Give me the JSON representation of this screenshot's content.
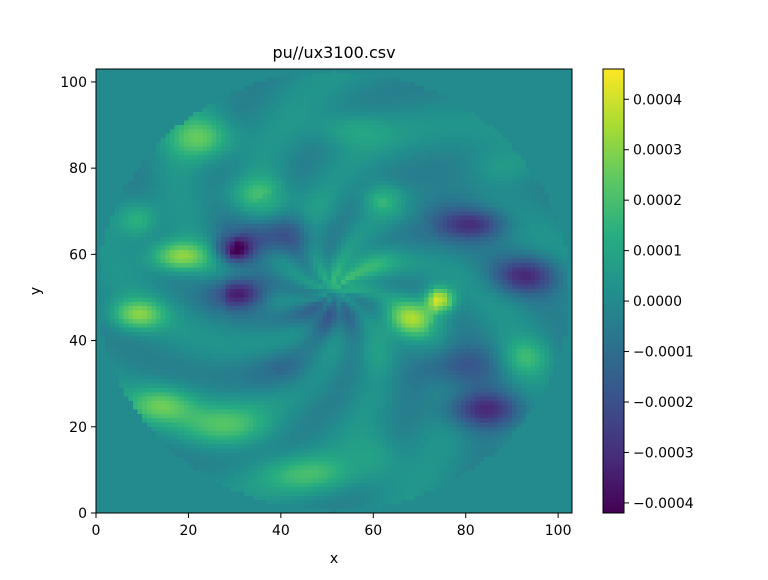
{
  "chart_data": {
    "type": "heatmap",
    "title": "pu//ux3100.csv",
    "xlabel": "x",
    "ylabel": "y",
    "xlim": [
      0,
      103
    ],
    "ylim": [
      0,
      103
    ],
    "x_ticks": [
      0,
      20,
      40,
      60,
      80,
      100
    ],
    "y_ticks": [
      0,
      20,
      40,
      60,
      80,
      100
    ],
    "colormap": "viridis",
    "colorbar": {
      "vmin": -0.00042,
      "vmax": 0.00046,
      "ticks": [
        0.0004,
        0.0003,
        0.0002,
        0.0001,
        0.0,
        -0.0001,
        -0.0002,
        -0.0003,
        -0.0004
      ],
      "tick_labels": [
        "0.0004",
        "0.0003",
        "0.0002",
        "0.0001",
        "0.0000",
        "−0.0001",
        "−0.0002",
        "−0.0003",
        "−0.0004"
      ]
    },
    "field": {
      "grid_size": 103,
      "center": [
        51.5,
        51.5
      ],
      "outer_radius": 51,
      "inner_circle_center": [
        51,
        52.5
      ],
      "inner_radius": 24.5,
      "background_value": 0.0,
      "features": [
        {
          "x": 18,
          "y": 59.5,
          "sx": 4.5,
          "sy": 2.5,
          "v": 0.00032
        },
        {
          "x": 9,
          "y": 46,
          "sx": 4,
          "sy": 2.5,
          "v": 0.00028
        },
        {
          "x": 23,
          "y": 87,
          "sx": 5,
          "sy": 3.5,
          "v": 0.00024
        },
        {
          "x": 9,
          "y": 68,
          "sx": 3,
          "sy": 3,
          "v": 0.00018
        },
        {
          "x": 14,
          "y": 25,
          "sx": 5,
          "sy": 3,
          "v": 0.00022
        },
        {
          "x": 28,
          "y": 20,
          "sx": 7,
          "sy": 3.5,
          "v": 0.0002
        },
        {
          "x": 46,
          "y": 9,
          "sx": 8,
          "sy": 3,
          "v": 0.00016
        },
        {
          "x": 35,
          "y": 74,
          "sx": 5,
          "sy": 3,
          "v": 0.00015
        },
        {
          "x": 55,
          "y": 89,
          "sx": 6,
          "sy": 3,
          "v": 0.00012
        },
        {
          "x": 76,
          "y": 70,
          "sx": 6,
          "sy": 4,
          "v": -0.00012
        },
        {
          "x": 82,
          "y": 67,
          "sx": 5,
          "sy": 2.5,
          "v": -0.00025
        },
        {
          "x": 93,
          "y": 55,
          "sx": 5,
          "sy": 3,
          "v": -0.00028
        },
        {
          "x": 84,
          "y": 24,
          "sx": 6,
          "sy": 3,
          "v": -0.00028
        },
        {
          "x": 78,
          "y": 34,
          "sx": 6,
          "sy": 3.5,
          "v": -0.00018
        },
        {
          "x": 93,
          "y": 36,
          "sx": 3.5,
          "sy": 3,
          "v": 0.00015
        },
        {
          "x": 88,
          "y": 80,
          "sx": 5,
          "sy": 3,
          "v": 0.0001
        },
        {
          "x": 40,
          "y": 33,
          "sx": 5,
          "sy": 3,
          "v": -8e-05
        },
        {
          "x": 61,
          "y": 13,
          "sx": 4,
          "sy": 4,
          "v": 0.0001
        },
        {
          "x": 31,
          "y": 51,
          "sx": 4,
          "sy": 2.5,
          "v": -0.00038
        },
        {
          "x": 30,
          "y": 61,
          "sx": 2.5,
          "sy": 2,
          "v": -0.00035
        },
        {
          "x": 37,
          "y": 64,
          "sx": 6,
          "sy": 3,
          "v": -0.00022
        },
        {
          "x": 50,
          "y": 46,
          "sx": 5,
          "sy": 3,
          "v": -0.00015
        },
        {
          "x": 53,
          "y": 54,
          "sx": 4,
          "sy": 3,
          "v": 0.00014
        },
        {
          "x": 68,
          "y": 45,
          "sx": 4,
          "sy": 3,
          "v": 0.00032
        },
        {
          "x": 74.5,
          "y": 49.5,
          "sx": 2,
          "sy": 2,
          "v": 0.00046
        },
        {
          "x": 60,
          "y": 58,
          "sx": 4,
          "sy": 3,
          "v": 0.00012
        },
        {
          "x": 62,
          "y": 73,
          "sx": 3,
          "sy": 2.5,
          "v": 0.00018
        },
        {
          "x": 64,
          "y": 37,
          "sx": 5,
          "sy": 3,
          "v": 5e-05
        },
        {
          "x": 45,
          "y": 71,
          "sx": 5,
          "sy": 3,
          "v": 4e-05
        }
      ]
    }
  }
}
